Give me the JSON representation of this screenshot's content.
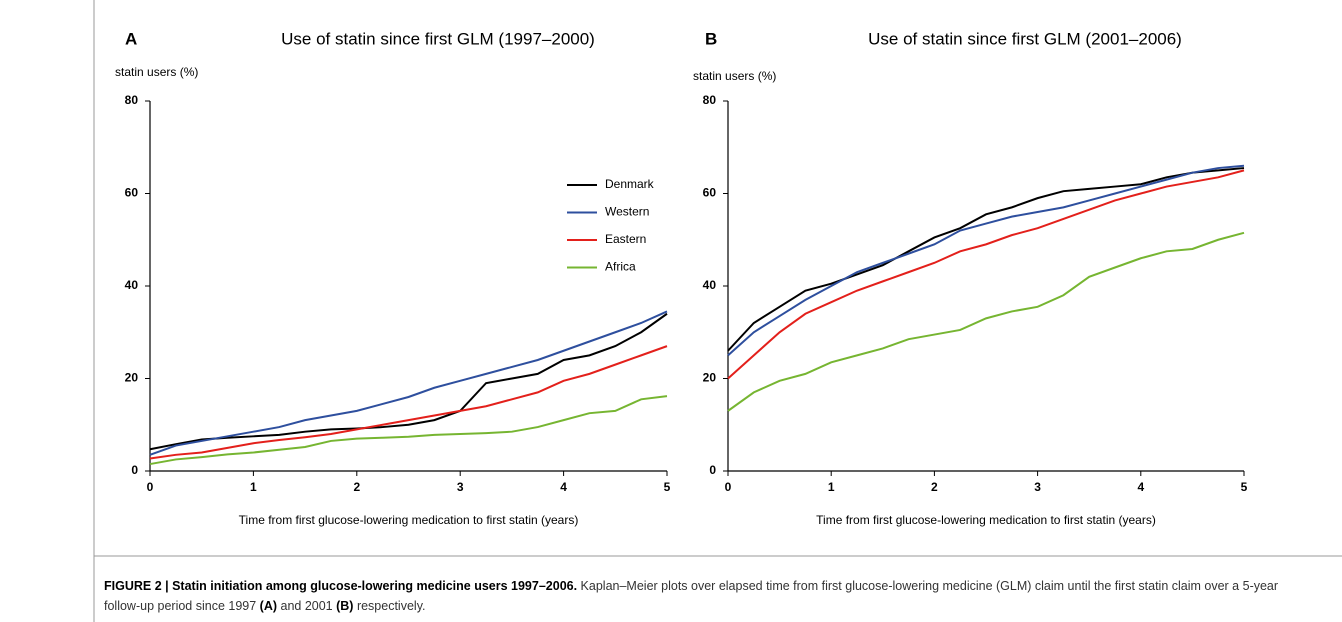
{
  "chart_data": [
    {
      "type": "line",
      "panel": "A",
      "title": "Use of statin since first GLM (1997–2000)",
      "ylabel": "statin users (%)",
      "xlabel": "Time from first glucose-lowering medication to first statin (years)",
      "xlim": [
        0,
        5
      ],
      "ylim": [
        0,
        80
      ],
      "xticks": [
        0,
        1,
        2,
        3,
        4,
        5
      ],
      "yticks": [
        0,
        20,
        40,
        60,
        80
      ],
      "legend": "right",
      "x": [
        0,
        0.25,
        0.5,
        0.75,
        1,
        1.25,
        1.5,
        1.75,
        2,
        2.25,
        2.5,
        2.75,
        3,
        3.25,
        3.5,
        3.75,
        4,
        4.25,
        4.5,
        4.75,
        5
      ],
      "series": [
        {
          "name": "Denmark",
          "color": "#000000",
          "values": [
            4.7,
            5.8,
            6.8,
            7.2,
            7.5,
            7.8,
            8.5,
            9.0,
            9.2,
            9.5,
            10,
            11,
            13,
            19,
            20,
            21,
            24,
            25,
            27,
            30,
            34
          ]
        },
        {
          "name": "Western",
          "color": "#2e4f9e",
          "values": [
            3.5,
            5.5,
            6.5,
            7.5,
            8.5,
            9.5,
            11,
            12,
            13,
            14.5,
            16,
            18,
            19.5,
            21,
            22.5,
            24,
            26,
            28,
            30,
            32,
            34.5
          ]
        },
        {
          "name": "Eastern",
          "color": "#e3201b",
          "values": [
            2.7,
            3.5,
            4,
            5,
            6,
            6.7,
            7.3,
            8,
            9,
            10,
            11,
            12,
            13,
            14,
            15.5,
            17,
            19.5,
            21,
            23,
            25,
            27
          ]
        },
        {
          "name": "Africa",
          "color": "#76b531",
          "values": [
            1.5,
            2.5,
            3,
            3.6,
            4,
            4.6,
            5.2,
            6.5,
            7,
            7.2,
            7.4,
            7.8,
            8,
            8.2,
            8.5,
            9.5,
            11,
            12.5,
            13,
            15.5,
            16.2
          ]
        }
      ]
    },
    {
      "type": "line",
      "panel": "B",
      "title": "Use of statin since first GLM (2001–2006)",
      "ylabel": "statin users (%)",
      "xlabel": "Time from first glucose-lowering medication to first statin (years)",
      "xlim": [
        0,
        5
      ],
      "ylim": [
        0,
        80
      ],
      "xticks": [
        0,
        1,
        2,
        3,
        4,
        5
      ],
      "yticks": [
        0,
        20,
        40,
        60,
        80
      ],
      "x": [
        0,
        0.25,
        0.5,
        0.75,
        1,
        1.25,
        1.5,
        1.75,
        2,
        2.25,
        2.5,
        2.75,
        3,
        3.25,
        3.5,
        3.75,
        4,
        4.25,
        4.5,
        4.75,
        5
      ],
      "series": [
        {
          "color": "#000000",
          "values": [
            26,
            32,
            35.5,
            39,
            40.5,
            42.5,
            44.5,
            47.5,
            50.5,
            52.5,
            55.5,
            57,
            59,
            60.5,
            61,
            61.5,
            62,
            63.5,
            64.5,
            65,
            65.5
          ]
        },
        {
          "color": "#2e4f9e",
          "values": [
            25,
            30,
            33.5,
            37,
            40,
            43,
            45,
            47,
            49,
            52,
            53.5,
            55,
            56,
            57,
            58.5,
            60,
            61.5,
            63,
            64.5,
            65.5,
            66
          ]
        },
        {
          "color": "#e3201b",
          "values": [
            20,
            25,
            30,
            34,
            36.5,
            39,
            41,
            43,
            45,
            47.5,
            49,
            51,
            52.5,
            54.5,
            56.5,
            58.5,
            60,
            61.5,
            62.5,
            63.5,
            65
          ]
        },
        {
          "color": "#76b531",
          "values": [
            13,
            17,
            19.5,
            21,
            23.5,
            25,
            26.5,
            28.5,
            29.5,
            30.5,
            33,
            34.5,
            35.5,
            38,
            42,
            44,
            46,
            47.5,
            48,
            50,
            51.5
          ]
        }
      ]
    }
  ],
  "caption": {
    "label": "FIGURE 2 | Statin initiation among glucose-lowering medicine users 1997–2006.",
    "parts": [
      " Kaplan–Meier plots over elapsed time from first glucose-lowering medicine (GLM) claim until the first statin claim over a 5-year follow-up period since 1997 ",
      "(A)",
      " and 2001 ",
      "(B)",
      " respectively."
    ]
  }
}
